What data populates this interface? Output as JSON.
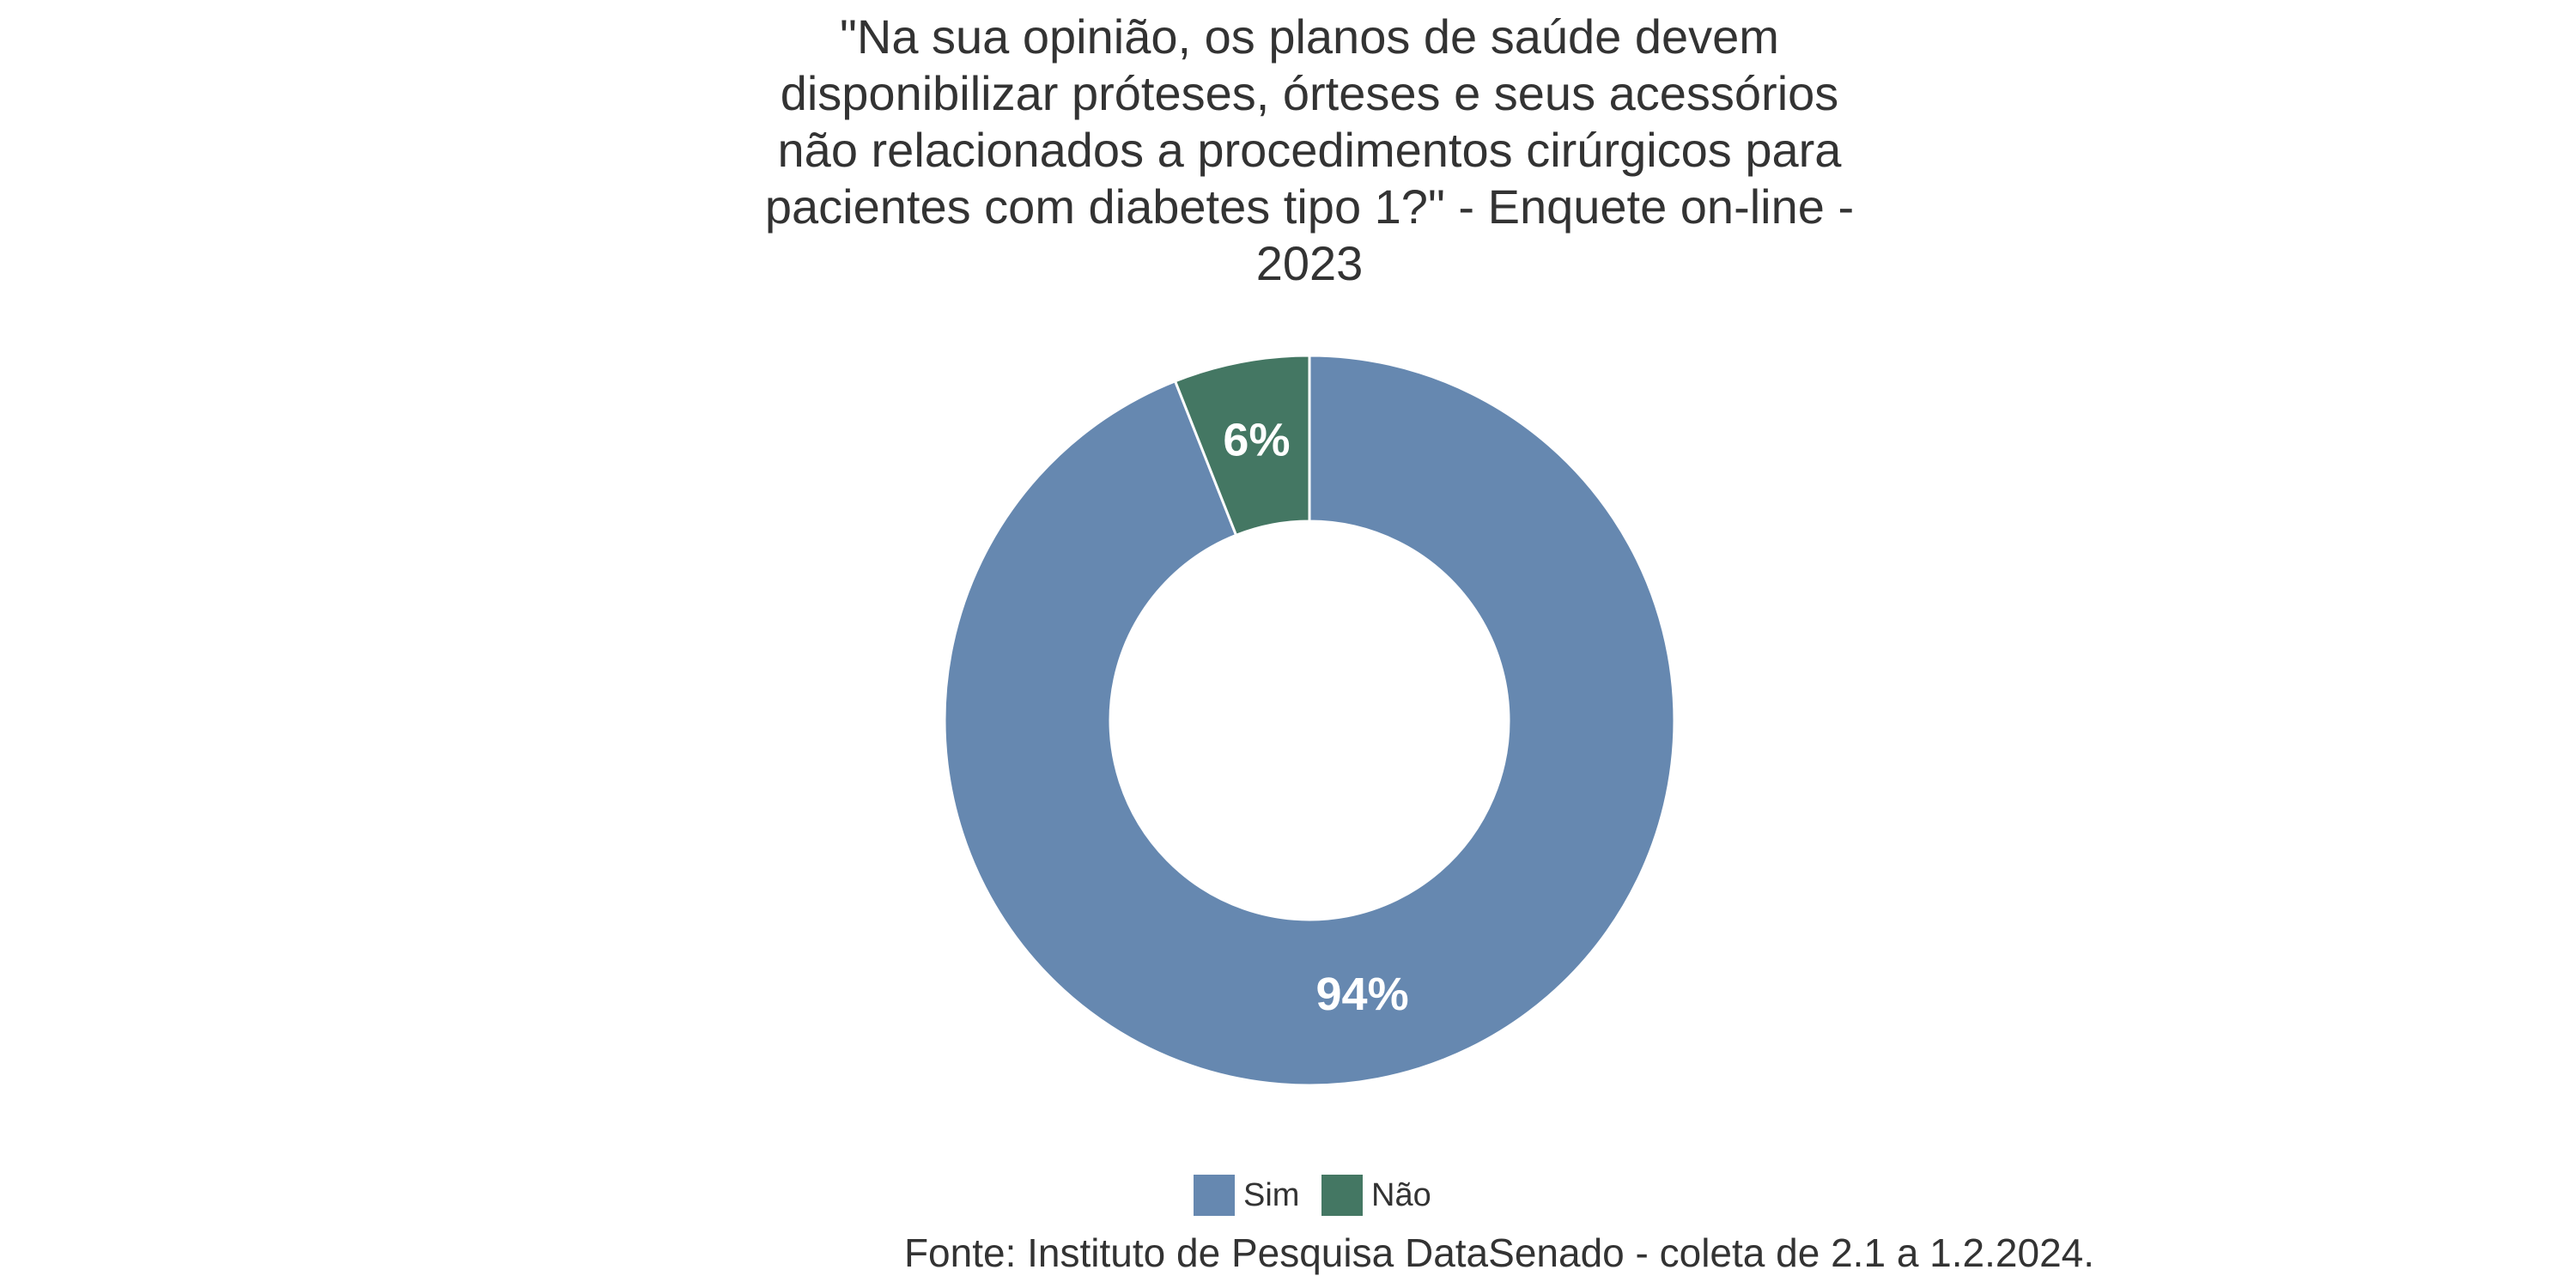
{
  "chart_data": {
    "type": "donut",
    "title": "\"Na sua opinião, os planos de saúde devem disponibilizar próteses, órteses e seus acessórios não relacionados a procedimentos cirúrgicos para pacientes com diabetes tipo 1?\" - Enquete on-line - 2023",
    "categories": [
      "Sim",
      "Não"
    ],
    "values": [
      94,
      6
    ],
    "value_labels": [
      "94%",
      "6%"
    ],
    "colors": [
      "#6688b0",
      "#447763"
    ],
    "caption": "Fonte: Instituto de Pesquisa DataSenado - coleta de 2.1 a 1.2.2024."
  }
}
